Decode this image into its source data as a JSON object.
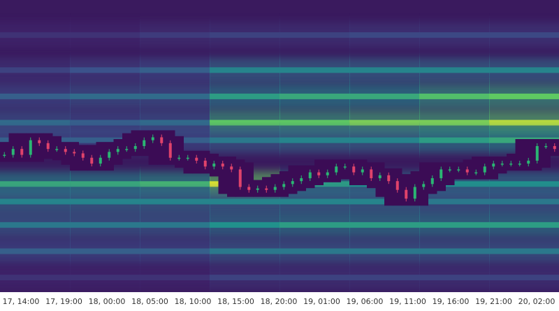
{
  "chart_data": {
    "type": "heatmap",
    "colormap": "viridis",
    "x": [
      "17, 14:00",
      "17, 19:00",
      "18, 00:00",
      "18, 05:00",
      "18, 10:00",
      "18, 15:00",
      "18, 20:00",
      "19, 01:00",
      "19, 06:00",
      "19, 11:00",
      "19, 16:00",
      "19, 21:00",
      "20, 02:00"
    ],
    "ylim": [
      0,
      100
    ],
    "levels": [
      {
        "y": 88,
        "intensity": [
          0.15,
          0.15,
          0.18,
          0.2,
          0.2,
          0.22,
          0.22,
          0.22
        ]
      },
      {
        "y": 76,
        "intensity": [
          0.2,
          0.25,
          0.3,
          0.45,
          0.45,
          0.45,
          0.45,
          0.45
        ]
      },
      {
        "y": 67,
        "intensity": [
          0.3,
          0.35,
          0.35,
          0.55,
          0.6,
          0.6,
          0.7,
          0.75
        ]
      },
      {
        "y": 58,
        "intensity": [
          0.35,
          0.3,
          0.35,
          0.75,
          0.75,
          0.8,
          0.8,
          0.9
        ]
      },
      {
        "y": 52,
        "intensity": [
          0.3,
          0.3,
          0.3,
          0.4,
          0.45,
          0.45,
          0.55,
          0.6
        ]
      },
      {
        "y": 37,
        "intensity": [
          0.6,
          0.6,
          0.65,
          0.95,
          0.55,
          0.5,
          0.5,
          0.5
        ]
      },
      {
        "y": 31,
        "intensity": [
          0.45,
          0.45,
          0.45,
          0.45,
          0.45,
          0.45,
          0.4,
          0.4
        ]
      },
      {
        "y": 23,
        "intensity": [
          0.4,
          0.4,
          0.4,
          0.5,
          0.55,
          0.55,
          0.55,
          0.55
        ]
      },
      {
        "y": 14,
        "intensity": [
          0.3,
          0.3,
          0.3,
          0.4,
          0.4,
          0.4,
          0.4,
          0.4
        ]
      },
      {
        "y": 5,
        "intensity": [
          0.15,
          0.15,
          0.15,
          0.2,
          0.2,
          0.2,
          0.2,
          0.2
        ]
      }
    ],
    "price": {
      "up_color": "#2bb673",
      "down_color": "#e0436b",
      "values": [
        47,
        49,
        47,
        52,
        51,
        49,
        49,
        48,
        47.5,
        46,
        44,
        46,
        48,
        49,
        49,
        50,
        52,
        53,
        51,
        46,
        46,
        46,
        45,
        43,
        44,
        43,
        42,
        36,
        35,
        35.5,
        35,
        36,
        37,
        38,
        39,
        41,
        40,
        41,
        43,
        43,
        41,
        42,
        39,
        40,
        38,
        35,
        32,
        36,
        37,
        39,
        42,
        42,
        42,
        41,
        41,
        43,
        44,
        44,
        44,
        44,
        45,
        50,
        50,
        49
      ]
    }
  }
}
